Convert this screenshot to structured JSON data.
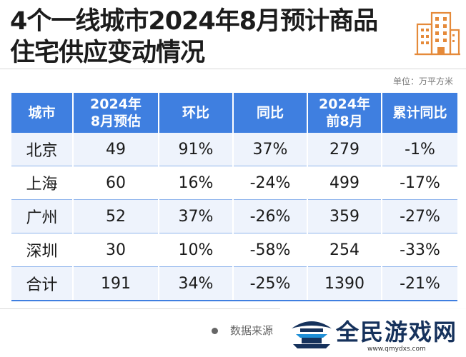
{
  "title": {
    "line1": "4个一线城市2024年8月预计商品",
    "line2": "住宅供应变动情况"
  },
  "unit_label": "单位：万平方米",
  "table": {
    "headers": [
      "城市",
      "2024年\n8月预估",
      "环比",
      "同比",
      "2024年\n前8月",
      "累计同比"
    ],
    "rows": [
      [
        "北京",
        "49",
        "91%",
        "37%",
        "279",
        "-1%"
      ],
      [
        "上海",
        "60",
        "16%",
        "-24%",
        "499",
        "-17%"
      ],
      [
        "广州",
        "52",
        "37%",
        "-26%",
        "359",
        "-27%"
      ],
      [
        "深圳",
        "30",
        "10%",
        "-58%",
        "254",
        "-33%"
      ],
      [
        "合计",
        "191",
        "34%",
        "-25%",
        "1390",
        "-21%"
      ]
    ]
  },
  "footer": {
    "source": "数据来源"
  },
  "watermark": {
    "brand": "全民游戏网",
    "url": "www.qmydxs.com"
  },
  "colors": {
    "header_bg": "#3f7fe0",
    "row_alt": "#eef3fc",
    "icon_accent": "#e58a3a",
    "logo_navy": "#16325c"
  }
}
